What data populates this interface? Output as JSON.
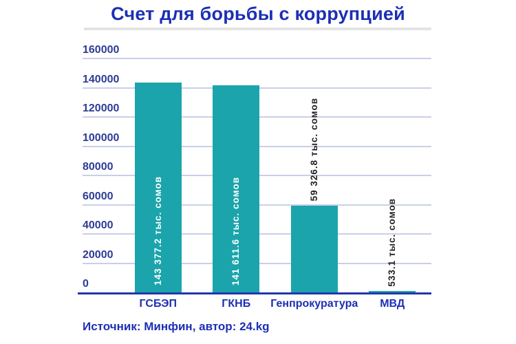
{
  "title": "Счет для борьбы с коррупцией",
  "source_note": "Источник: Минфин, автор: 24.kg",
  "chart_data": {
    "type": "bar",
    "title": "Счет для борьбы с коррупцией",
    "categories": [
      "ГСБЭП",
      "ГКНБ",
      "Генпрокуратура",
      "МВД"
    ],
    "values": [
      143377.2,
      141611.6,
      59326.8,
      533.1
    ],
    "bar_labels": [
      "143 377.2 тыс. сомов",
      "141 611.6 тыс. сомов",
      "59 326.8 тыс. сомов",
      "533.1 тыс. сомов"
    ],
    "xlabel": "",
    "ylabel": "",
    "ylim": [
      0,
      160000
    ],
    "yticks": [
      0,
      20000,
      40000,
      60000,
      80000,
      100000,
      120000,
      140000,
      160000
    ],
    "grid": true,
    "legend": false,
    "unit": "тыс. сомов"
  },
  "colors": {
    "bar": "#1ba4ac",
    "title_text": "#1c2fb5",
    "tick_text": "#2d3c96",
    "gridline": "#c9cfe8",
    "axis_line": "#2136ae",
    "divider": "#e3e3e3",
    "value_label_inside": "#ffffff",
    "value_label_outside": "#1f1f1f",
    "background": "#ffffff"
  }
}
